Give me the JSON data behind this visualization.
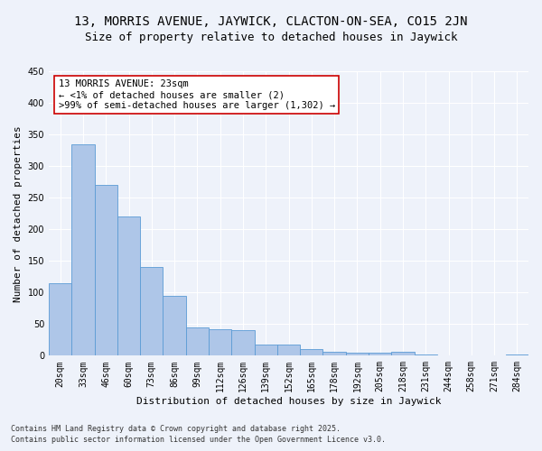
{
  "title_line1": "13, MORRIS AVENUE, JAYWICK, CLACTON-ON-SEA, CO15 2JN",
  "title_line2": "Size of property relative to detached houses in Jaywick",
  "xlabel": "Distribution of detached houses by size in Jaywick",
  "ylabel": "Number of detached properties",
  "categories": [
    "20sqm",
    "33sqm",
    "46sqm",
    "60sqm",
    "73sqm",
    "86sqm",
    "99sqm",
    "112sqm",
    "126sqm",
    "139sqm",
    "152sqm",
    "165sqm",
    "178sqm",
    "192sqm",
    "205sqm",
    "218sqm",
    "231sqm",
    "244sqm",
    "258sqm",
    "271sqm",
    "284sqm"
  ],
  "values": [
    115,
    335,
    270,
    220,
    140,
    95,
    45,
    42,
    40,
    17,
    17,
    10,
    6,
    5,
    5,
    6,
    2,
    1,
    0,
    0,
    2
  ],
  "bar_color": "#aec6e8",
  "bar_edge_color": "#5b9bd5",
  "ylim": [
    0,
    450
  ],
  "yticks": [
    0,
    50,
    100,
    150,
    200,
    250,
    300,
    350,
    400,
    450
  ],
  "annotation_box_text": "13 MORRIS AVENUE: 23sqm\n← <1% of detached houses are smaller (2)\n>99% of semi-detached houses are larger (1,302) →",
  "annotation_box_color": "#cc0000",
  "annotation_fill_color": "#ffffff",
  "footer_line1": "Contains HM Land Registry data © Crown copyright and database right 2025.",
  "footer_line2": "Contains public sector information licensed under the Open Government Licence v3.0.",
  "background_color": "#eef2fa",
  "grid_color": "#ffffff",
  "title_fontsize": 10,
  "subtitle_fontsize": 9,
  "axis_label_fontsize": 8,
  "tick_fontsize": 7,
  "annotation_fontsize": 7.5,
  "footer_fontsize": 6
}
